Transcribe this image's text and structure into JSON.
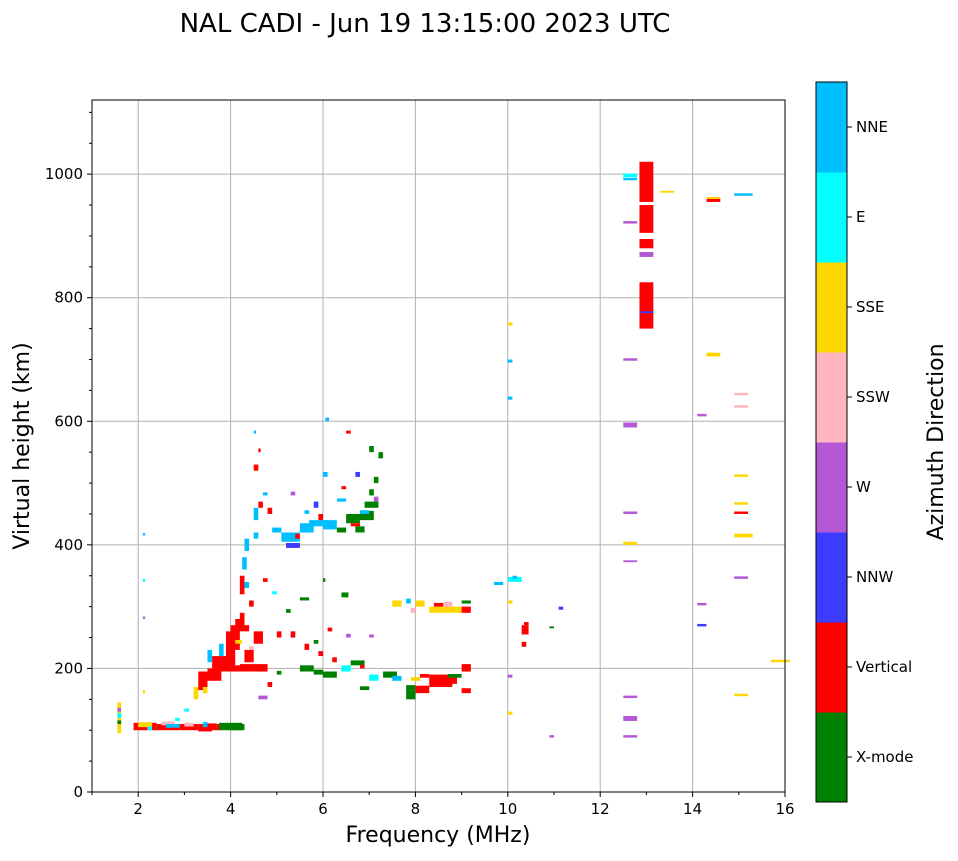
{
  "chart_data": {
    "type": "scatter",
    "title": "NAL CADI - Jun 19 13:15:00 2023 UTC",
    "xlabel": "Frequency (MHz)",
    "ylabel": "Virtual height (km)",
    "xlim": [
      1,
      16
    ],
    "ylim": [
      0,
      1120
    ],
    "xticks": [
      2,
      4,
      6,
      8,
      10,
      12,
      14,
      16
    ],
    "yticks": [
      0,
      200,
      400,
      600,
      800,
      1000
    ],
    "grid": true,
    "colorbar": {
      "label": "Azimuth Direction",
      "categories": [
        "X-mode",
        "Vertical",
        "NNW",
        "W",
        "SSW",
        "SSE",
        "E",
        "NNE"
      ],
      "colors": [
        "#008000",
        "#ff0000",
        "#3c3cff",
        "#b459d6",
        "#ffb6c1",
        "#ffd700",
        "#00ffff",
        "#00bfff"
      ]
    },
    "point_format": [
      "freq_MHz",
      "height_km",
      "category_index",
      "freq_width_MHz",
      "height_span_km"
    ],
    "points": [
      [
        1.55,
        95,
        5,
        0.08,
        50
      ],
      [
        1.55,
        120,
        6,
        0.08,
        8
      ],
      [
        1.55,
        110,
        0,
        0.08,
        6
      ],
      [
        1.55,
        130,
        3,
        0.08,
        6
      ],
      [
        1.9,
        100,
        1,
        0.5,
        12
      ],
      [
        2.0,
        105,
        5,
        0.3,
        8
      ],
      [
        2.4,
        100,
        1,
        0.5,
        10
      ],
      [
        2.5,
        108,
        4,
        0.3,
        6
      ],
      [
        2.6,
        104,
        7,
        0.3,
        6
      ],
      [
        2.9,
        100,
        1,
        0.4,
        10
      ],
      [
        3.0,
        106,
        4,
        0.2,
        6
      ],
      [
        3.3,
        98,
        1,
        0.3,
        12
      ],
      [
        3.4,
        105,
        7,
        0.1,
        8
      ],
      [
        3.6,
        100,
        1,
        0.2,
        10
      ],
      [
        3.6,
        104,
        6,
        0.1,
        6
      ],
      [
        3.75,
        100,
        0,
        0.5,
        12
      ],
      [
        4.0,
        100,
        0,
        0.3,
        10
      ],
      [
        3.5,
        103,
        1,
        0.2,
        8
      ],
      [
        2.2,
        100,
        6,
        0.1,
        6
      ],
      [
        2.8,
        115,
        6,
        0.1,
        5
      ],
      [
        3.0,
        130,
        6,
        0.1,
        5
      ],
      [
        2.1,
        160,
        5,
        0.05,
        5
      ],
      [
        2.1,
        340,
        6,
        0.05,
        5
      ],
      [
        2.1,
        415,
        7,
        0.05,
        4
      ],
      [
        2.1,
        280,
        3,
        0.05,
        4
      ],
      [
        3.2,
        150,
        5,
        0.1,
        20
      ],
      [
        3.3,
        165,
        1,
        0.2,
        30
      ],
      [
        3.4,
        160,
        5,
        0.1,
        10
      ],
      [
        3.5,
        180,
        1,
        0.3,
        20
      ],
      [
        3.6,
        200,
        1,
        0.4,
        20
      ],
      [
        3.5,
        210,
        7,
        0.1,
        20
      ],
      [
        3.7,
        195,
        1,
        0.6,
        10
      ],
      [
        3.9,
        200,
        1,
        0.2,
        60
      ],
      [
        4.0,
        230,
        1,
        0.2,
        40
      ],
      [
        4.1,
        260,
        1,
        0.2,
        20
      ],
      [
        3.75,
        220,
        7,
        0.1,
        20
      ],
      [
        4.2,
        195,
        1,
        0.6,
        12
      ],
      [
        4.3,
        210,
        1,
        0.2,
        20
      ],
      [
        4.5,
        195,
        1,
        0.3,
        10
      ],
      [
        4.5,
        240,
        1,
        0.2,
        20
      ],
      [
        4.3,
        260,
        1,
        0.1,
        10
      ],
      [
        4.4,
        230,
        4,
        0.1,
        6
      ],
      [
        4.2,
        280,
        1,
        0.1,
        10
      ],
      [
        4.4,
        300,
        1,
        0.1,
        10
      ],
      [
        4.2,
        320,
        1,
        0.1,
        30
      ],
      [
        4.25,
        360,
        7,
        0.1,
        20
      ],
      [
        4.3,
        390,
        7,
        0.1,
        20
      ],
      [
        4.3,
        330,
        7,
        0.1,
        10
      ],
      [
        4.1,
        240,
        5,
        0.15,
        6
      ],
      [
        4.5,
        410,
        7,
        0.1,
        10
      ],
      [
        4.5,
        440,
        7,
        0.1,
        20
      ],
      [
        4.6,
        460,
        1,
        0.1,
        10
      ],
      [
        4.5,
        520,
        1,
        0.1,
        10
      ],
      [
        4.5,
        580,
        7,
        0.05,
        5
      ],
      [
        4.6,
        550,
        1,
        0.05,
        6
      ],
      [
        4.7,
        480,
        7,
        0.1,
        5
      ],
      [
        4.8,
        450,
        1,
        0.1,
        10
      ],
      [
        4.9,
        420,
        7,
        0.2,
        8
      ],
      [
        5.1,
        405,
        7,
        0.4,
        15
      ],
      [
        5.2,
        395,
        2,
        0.3,
        8
      ],
      [
        5.4,
        410,
        1,
        0.1,
        8
      ],
      [
        5.5,
        420,
        7,
        0.3,
        15
      ],
      [
        5.7,
        430,
        7,
        0.4,
        10
      ],
      [
        5.9,
        440,
        1,
        0.1,
        10
      ],
      [
        6.0,
        425,
        7,
        0.3,
        15
      ],
      [
        5.8,
        460,
        2,
        0.1,
        10
      ],
      [
        6.0,
        510,
        7,
        0.1,
        8
      ],
      [
        6.05,
        600,
        7,
        0.08,
        6
      ],
      [
        6.3,
        420,
        0,
        0.2,
        8
      ],
      [
        6.5,
        435,
        0,
        0.3,
        15
      ],
      [
        6.7,
        420,
        0,
        0.2,
        10
      ],
      [
        6.8,
        440,
        0,
        0.3,
        15
      ],
      [
        6.9,
        460,
        0,
        0.3,
        10
      ],
      [
        7.0,
        480,
        0,
        0.1,
        10
      ],
      [
        7.1,
        500,
        0,
        0.1,
        10
      ],
      [
        7.0,
        550,
        0,
        0.1,
        10
      ],
      [
        7.2,
        540,
        0,
        0.1,
        10
      ],
      [
        6.7,
        510,
        2,
        0.1,
        8
      ],
      [
        6.5,
        580,
        1,
        0.1,
        5
      ],
      [
        6.8,
        450,
        7,
        0.2,
        6
      ],
      [
        6.3,
        470,
        7,
        0.2,
        5
      ],
      [
        7.1,
        470,
        3,
        0.1,
        8
      ],
      [
        6.6,
        430,
        1,
        0.2,
        5
      ],
      [
        5.3,
        480,
        3,
        0.1,
        6
      ],
      [
        5.6,
        450,
        7,
        0.1,
        6
      ],
      [
        6.4,
        490,
        1,
        0.1,
        5
      ],
      [
        4.6,
        150,
        3,
        0.2,
        6
      ],
      [
        4.8,
        170,
        1,
        0.1,
        8
      ],
      [
        5.0,
        190,
        0,
        0.1,
        6
      ],
      [
        5.5,
        195,
        0,
        0.3,
        10
      ],
      [
        5.8,
        190,
        0,
        0.2,
        8
      ],
      [
        6.0,
        185,
        0,
        0.3,
        10
      ],
      [
        6.4,
        195,
        6,
        0.2,
        10
      ],
      [
        6.6,
        205,
        0,
        0.3,
        8
      ],
      [
        6.8,
        165,
        0,
        0.2,
        6
      ],
      [
        7.0,
        180,
        6,
        0.2,
        10
      ],
      [
        7.3,
        185,
        0,
        0.3,
        10
      ],
      [
        7.5,
        180,
        7,
        0.2,
        8
      ],
      [
        7.8,
        165,
        0,
        0.2,
        8
      ],
      [
        7.8,
        150,
        0,
        0.2,
        15
      ],
      [
        8.0,
        160,
        1,
        0.3,
        12
      ],
      [
        8.3,
        170,
        1,
        0.5,
        20
      ],
      [
        8.5,
        175,
        1,
        0.4,
        12
      ],
      [
        9.0,
        195,
        1,
        0.2,
        12
      ],
      [
        9.0,
        160,
        1,
        0.2,
        8
      ],
      [
        8.1,
        185,
        1,
        0.2,
        6
      ],
      [
        7.9,
        180,
        5,
        0.2,
        6
      ],
      [
        8.7,
        185,
        0,
        0.3,
        6
      ],
      [
        8.0,
        300,
        5,
        0.2,
        10
      ],
      [
        8.3,
        290,
        5,
        0.3,
        10
      ],
      [
        8.6,
        290,
        5,
        0.4,
        10
      ],
      [
        8.4,
        300,
        1,
        0.3,
        6
      ],
      [
        9.0,
        290,
        1,
        0.2,
        10
      ],
      [
        7.5,
        300,
        5,
        0.2,
        10
      ],
      [
        7.8,
        305,
        7,
        0.1,
        8
      ],
      [
        7.9,
        290,
        4,
        0.1,
        8
      ],
      [
        8.6,
        300,
        4,
        0.2,
        8
      ],
      [
        9.0,
        305,
        0,
        0.2,
        5
      ],
      [
        6.4,
        315,
        0,
        0.15,
        8
      ],
      [
        5.5,
        310,
        0,
        0.2,
        5
      ],
      [
        5.0,
        250,
        1,
        0.1,
        10
      ],
      [
        5.3,
        250,
        1,
        0.1,
        10
      ],
      [
        5.6,
        230,
        1,
        0.1,
        10
      ],
      [
        5.9,
        220,
        1,
        0.1,
        8
      ],
      [
        6.2,
        210,
        1,
        0.1,
        8
      ],
      [
        5.8,
        240,
        0,
        0.1,
        6
      ],
      [
        6.1,
        260,
        1,
        0.1,
        6
      ],
      [
        6.0,
        340,
        0,
        0.05,
        6
      ],
      [
        6.5,
        250,
        3,
        0.1,
        6
      ],
      [
        7.0,
        250,
        3,
        0.1,
        5
      ],
      [
        6.8,
        200,
        1,
        0.1,
        6
      ],
      [
        5.2,
        290,
        0,
        0.1,
        6
      ],
      [
        4.9,
        320,
        6,
        0.1,
        5
      ],
      [
        4.7,
        340,
        1,
        0.1,
        6
      ],
      [
        9.7,
        335,
        7,
        0.2,
        5
      ],
      [
        10.0,
        340,
        6,
        0.3,
        8
      ],
      [
        10.1,
        345,
        7,
        0.1,
        5
      ],
      [
        10.3,
        235,
        1,
        0.1,
        8
      ],
      [
        10.3,
        255,
        1,
        0.15,
        15
      ],
      [
        10.35,
        270,
        1,
        0.1,
        5
      ],
      [
        10.0,
        185,
        3,
        0.1,
        5
      ],
      [
        10.0,
        125,
        5,
        0.1,
        5
      ],
      [
        10.0,
        305,
        5,
        0.1,
        5
      ],
      [
        10.0,
        635,
        7,
        0.1,
        5
      ],
      [
        10.0,
        695,
        7,
        0.1,
        5
      ],
      [
        10.0,
        755,
        5,
        0.1,
        5
      ],
      [
        11.1,
        295,
        2,
        0.1,
        5
      ],
      [
        10.9,
        265,
        0,
        0.1,
        3
      ],
      [
        10.9,
        88,
        3,
        0.1,
        4
      ],
      [
        12.85,
        750,
        1,
        0.3,
        75
      ],
      [
        12.85,
        880,
        1,
        0.3,
        15
      ],
      [
        12.85,
        905,
        1,
        0.3,
        45
      ],
      [
        12.85,
        955,
        1,
        0.3,
        65
      ],
      [
        12.85,
        775,
        2,
        0.3,
        3
      ],
      [
        12.85,
        866,
        3,
        0.3,
        8
      ],
      [
        12.5,
        995,
        6,
        0.3,
        6
      ],
      [
        12.5,
        990,
        7,
        0.3,
        4
      ],
      [
        12.5,
        920,
        3,
        0.3,
        4
      ],
      [
        12.5,
        698,
        3,
        0.3,
        4
      ],
      [
        12.5,
        590,
        3,
        0.3,
        8
      ],
      [
        12.5,
        450,
        3,
        0.3,
        4
      ],
      [
        12.5,
        400,
        5,
        0.3,
        5
      ],
      [
        12.5,
        372,
        3,
        0.3,
        3
      ],
      [
        12.5,
        152,
        3,
        0.3,
        4
      ],
      [
        12.5,
        115,
        3,
        0.3,
        8
      ],
      [
        12.5,
        88,
        3,
        0.3,
        4
      ],
      [
        13.3,
        970,
        5,
        0.3,
        3
      ],
      [
        14.1,
        608,
        3,
        0.2,
        4
      ],
      [
        14.1,
        302,
        3,
        0.2,
        4
      ],
      [
        14.1,
        268,
        2,
        0.2,
        4
      ],
      [
        14.3,
        955,
        1,
        0.3,
        5
      ],
      [
        14.3,
        960,
        5,
        0.3,
        3
      ],
      [
        14.3,
        705,
        5,
        0.3,
        6
      ],
      [
        14.9,
        965,
        7,
        0.4,
        4
      ],
      [
        14.9,
        642,
        4,
        0.3,
        4
      ],
      [
        14.9,
        622,
        4,
        0.3,
        4
      ],
      [
        14.9,
        510,
        5,
        0.3,
        4
      ],
      [
        14.9,
        465,
        5,
        0.3,
        4
      ],
      [
        14.9,
        450,
        1,
        0.3,
        4
      ],
      [
        14.9,
        412,
        5,
        0.4,
        6
      ],
      [
        14.9,
        345,
        3,
        0.3,
        4
      ],
      [
        14.9,
        155,
        5,
        0.3,
        4
      ],
      [
        15.7,
        210,
        5,
        0.4,
        4
      ]
    ]
  }
}
